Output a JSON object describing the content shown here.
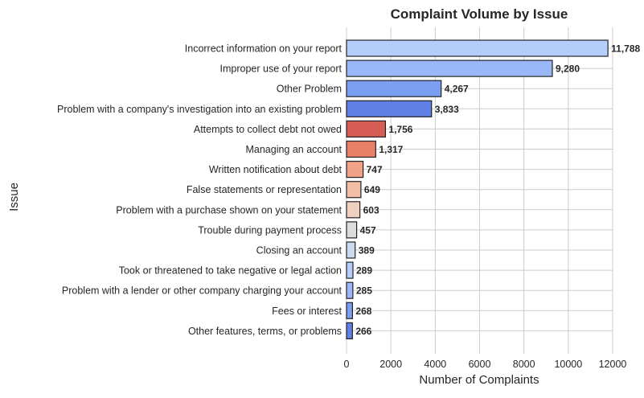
{
  "chart_data": {
    "type": "bar",
    "orientation": "horizontal",
    "title": "Complaint Volume by Issue",
    "xlabel": "Number of Complaints",
    "ylabel": "Issue",
    "xlim": [
      0,
      12000
    ],
    "xticks": [
      0,
      2000,
      4000,
      6000,
      8000,
      10000,
      12000
    ],
    "grid": true,
    "categories": [
      "Incorrect information on your report",
      "Improper use of your report",
      "Other Problem",
      "Problem with a company's investigation into an existing problem",
      "Attempts to collect debt not owed",
      "Managing an account",
      "Written notification about debt",
      "False statements or representation",
      "Problem with a purchase shown on your statement",
      "Trouble during payment process",
      "Closing an account",
      "Took or threatened to take negative or legal action",
      "Problem with a lender or other company charging your account",
      "Fees or interest",
      "Other features, terms, or problems"
    ],
    "values": [
      11788,
      9280,
      4267,
      3833,
      1756,
      1317,
      747,
      649,
      603,
      457,
      389,
      289,
      285,
      268,
      266
    ],
    "value_labels": [
      "11,788",
      "9,280",
      "4,267",
      "3,833",
      "1,756",
      "1,317",
      "747",
      "649",
      "603",
      "457",
      "389",
      "289",
      "285",
      "268",
      "266"
    ],
    "colors": [
      "#b5cdfa",
      "#9ab8f8",
      "#7b9ff0",
      "#6180e6",
      "#d65d54",
      "#ea7f68",
      "#f2a287",
      "#f4bea6",
      "#efd0c0",
      "#dddcdc",
      "#ccdaf0",
      "#b5cdfa",
      "#9ab8f8",
      "#7b9ff0",
      "#6180e6"
    ]
  }
}
